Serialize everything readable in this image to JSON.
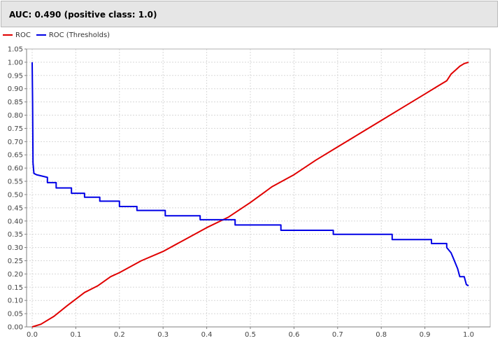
{
  "title": "AUC: 0.490 (positive class: 1.0)",
  "colors": {
    "roc": "#e00000",
    "thresholds": "#0000e6",
    "grid": "#d8d8d8",
    "axis": "#808080"
  },
  "chart_data": {
    "type": "line",
    "xlim": [
      0.0,
      1.0
    ],
    "ylim": [
      0.0,
      1.05
    ],
    "grid": true,
    "legend_placement": "top-left",
    "x_ticks": [
      0.0,
      0.1,
      0.2,
      0.3,
      0.4,
      0.5,
      0.6,
      0.7,
      0.8,
      0.9,
      1.0
    ],
    "x_tick_labels": [
      "0.0",
      "0.1",
      "0.2",
      "0.3",
      "0.4",
      "0.5",
      "0.6",
      "0.7",
      "0.8",
      "0.9",
      "1.0"
    ],
    "y_ticks": [
      0.0,
      0.05,
      0.1,
      0.15,
      0.2,
      0.25,
      0.3,
      0.35,
      0.4,
      0.45,
      0.5,
      0.55,
      0.6,
      0.65,
      0.7,
      0.75,
      0.8,
      0.85,
      0.9,
      0.95,
      1.0,
      1.05
    ],
    "y_tick_labels": [
      "0.00",
      "0.05",
      "0.10",
      "0.15",
      "0.20",
      "0.25",
      "0.30",
      "0.35",
      "0.40",
      "0.45",
      "0.50",
      "0.55",
      "0.60",
      "0.65",
      "0.70",
      "0.75",
      "0.80",
      "0.85",
      "0.90",
      "0.95",
      "1.00",
      "1.05"
    ],
    "series": [
      {
        "name": "ROC",
        "color": "#e00000",
        "x": [
          0.0,
          0.02,
          0.05,
          0.08,
          0.1,
          0.12,
          0.15,
          0.18,
          0.2,
          0.25,
          0.3,
          0.35,
          0.4,
          0.45,
          0.5,
          0.55,
          0.6,
          0.65,
          0.7,
          0.75,
          0.8,
          0.85,
          0.9,
          0.93,
          0.95,
          0.96,
          0.97,
          0.98,
          0.99,
          1.0
        ],
        "y": [
          0.0,
          0.01,
          0.04,
          0.08,
          0.105,
          0.13,
          0.155,
          0.19,
          0.205,
          0.25,
          0.285,
          0.33,
          0.375,
          0.415,
          0.47,
          0.53,
          0.575,
          0.63,
          0.68,
          0.73,
          0.78,
          0.83,
          0.88,
          0.91,
          0.93,
          0.955,
          0.97,
          0.985,
          0.995,
          1.0
        ]
      },
      {
        "name": "ROC (Thresholds)",
        "color": "#0000e6",
        "x": [
          0.0,
          0.001,
          0.002,
          0.004,
          0.01,
          0.035,
          0.035,
          0.055,
          0.055,
          0.09,
          0.09,
          0.12,
          0.12,
          0.155,
          0.155,
          0.2,
          0.2,
          0.24,
          0.24,
          0.305,
          0.305,
          0.385,
          0.385,
          0.465,
          0.465,
          0.57,
          0.57,
          0.69,
          0.69,
          0.825,
          0.825,
          0.915,
          0.915,
          0.95,
          0.95,
          0.96,
          0.965,
          0.97,
          0.975,
          0.98,
          0.99,
          0.995,
          1.0
        ],
        "y": [
          1.0,
          0.85,
          0.62,
          0.58,
          0.575,
          0.565,
          0.545,
          0.545,
          0.525,
          0.525,
          0.505,
          0.505,
          0.49,
          0.49,
          0.475,
          0.475,
          0.455,
          0.455,
          0.44,
          0.44,
          0.42,
          0.42,
          0.405,
          0.405,
          0.385,
          0.385,
          0.365,
          0.365,
          0.35,
          0.35,
          0.33,
          0.33,
          0.315,
          0.315,
          0.3,
          0.28,
          0.26,
          0.24,
          0.22,
          0.19,
          0.19,
          0.16,
          0.155
        ]
      }
    ]
  }
}
